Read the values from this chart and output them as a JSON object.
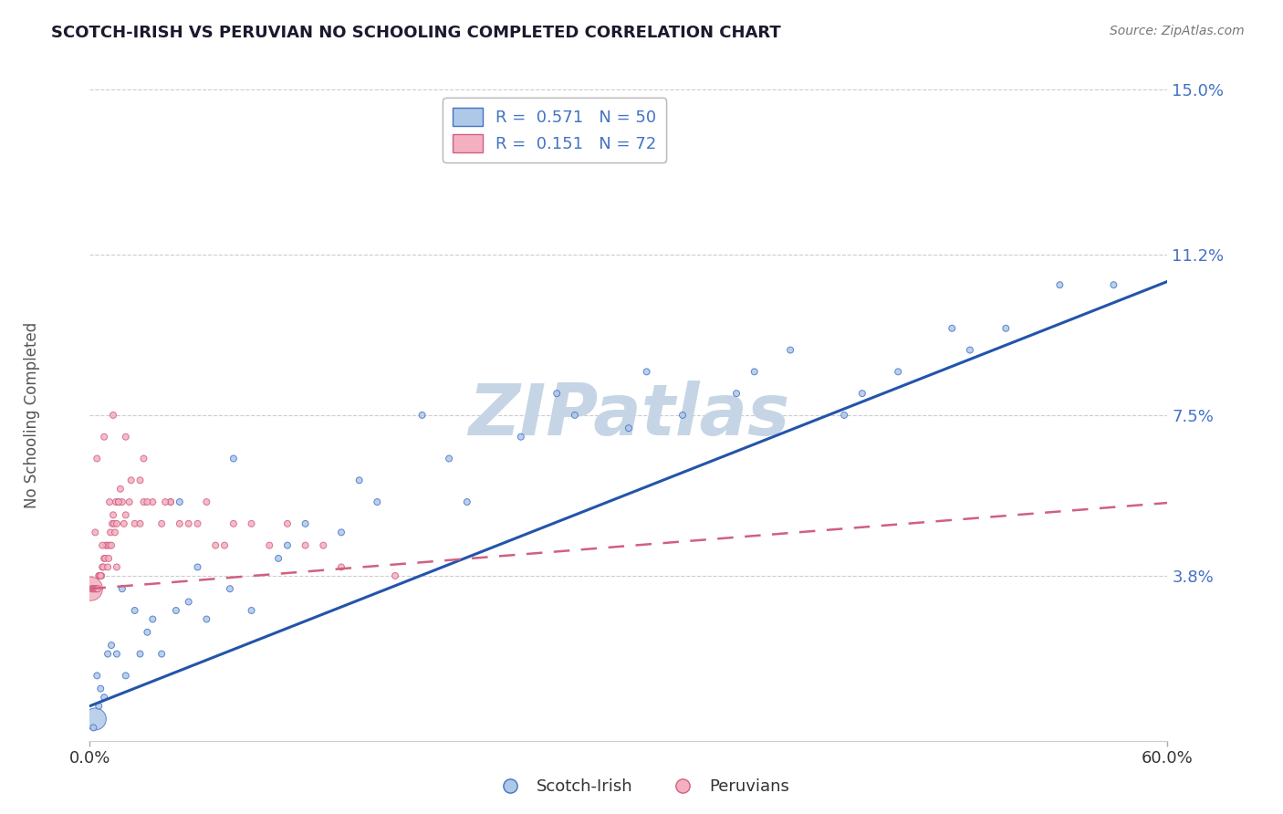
{
  "title": "SCOTCH-IRISH VS PERUVIAN NO SCHOOLING COMPLETED CORRELATION CHART",
  "source": "Source: ZipAtlas.com",
  "ylabel": "No Schooling Completed",
  "xlim": [
    0.0,
    60.0
  ],
  "ylim": [
    0.0,
    15.0
  ],
  "xtick_vals": [
    0.0,
    60.0
  ],
  "xtick_labels": [
    "0.0%",
    "60.0%"
  ],
  "ytick_vals": [
    3.8,
    7.5,
    11.2,
    15.0
  ],
  "ytick_labels": [
    "3.8%",
    "7.5%",
    "11.2%",
    "15.0%"
  ],
  "blue_face": "#aec8e8",
  "blue_edge": "#4472c4",
  "pink_face": "#f4b0c0",
  "pink_edge": "#d06080",
  "blue_trend_color": "#2255aa",
  "pink_trend_color": "#d06080",
  "legend_text_color": "#4472c4",
  "legend_blue_R": "0.571",
  "legend_blue_N": "50",
  "legend_pink_R": "0.151",
  "legend_pink_N": "72",
  "blue_trend_intercept": 0.8,
  "blue_trend_slope": 0.163,
  "pink_trend_intercept": 3.5,
  "pink_trend_slope": 0.033,
  "blue_x": [
    0.3,
    0.5,
    0.8,
    1.2,
    1.5,
    2.0,
    2.8,
    3.2,
    4.0,
    4.8,
    5.5,
    6.5,
    7.8,
    9.0,
    10.5,
    12.0,
    14.0,
    16.0,
    18.5,
    21.0,
    24.0,
    27.0,
    30.0,
    33.0,
    36.0,
    39.0,
    42.0,
    45.0,
    48.0,
    51.0,
    54.0,
    57.0,
    0.2,
    0.6,
    1.0,
    2.5,
    5.0,
    8.0,
    11.0,
    15.0,
    20.0,
    26.0,
    31.0,
    37.0,
    43.0,
    49.0,
    0.4,
    1.8,
    3.5,
    6.0
  ],
  "blue_y": [
    0.5,
    0.8,
    1.0,
    2.2,
    2.0,
    1.5,
    2.0,
    2.5,
    2.0,
    3.0,
    3.2,
    2.8,
    3.5,
    3.0,
    4.2,
    5.0,
    4.8,
    5.5,
    7.5,
    5.5,
    7.0,
    7.5,
    7.2,
    7.5,
    8.0,
    9.0,
    7.5,
    8.5,
    9.5,
    9.5,
    10.5,
    10.5,
    0.3,
    1.2,
    2.0,
    3.0,
    5.5,
    6.5,
    4.5,
    6.0,
    6.5,
    8.0,
    8.5,
    8.5,
    8.0,
    9.0,
    1.5,
    3.5,
    2.8,
    4.0
  ],
  "blue_sizes": [
    25,
    25,
    25,
    25,
    25,
    25,
    25,
    25,
    25,
    25,
    25,
    25,
    25,
    25,
    25,
    25,
    25,
    25,
    25,
    25,
    25,
    25,
    25,
    25,
    25,
    25,
    25,
    25,
    25,
    25,
    25,
    25,
    25,
    25,
    25,
    25,
    25,
    25,
    25,
    25,
    25,
    25,
    25,
    25,
    25,
    25,
    25,
    25,
    25,
    25
  ],
  "blue_large_idx": [
    0
  ],
  "blue_large_size": 300,
  "pink_x": [
    0.05,
    0.1,
    0.15,
    0.2,
    0.25,
    0.3,
    0.35,
    0.4,
    0.45,
    0.5,
    0.55,
    0.6,
    0.65,
    0.7,
    0.75,
    0.8,
    0.85,
    0.9,
    0.95,
    1.0,
    1.05,
    1.1,
    1.15,
    1.2,
    1.25,
    1.3,
    1.35,
    1.4,
    1.45,
    1.5,
    1.6,
    1.7,
    1.8,
    1.9,
    2.0,
    2.2,
    2.5,
    2.8,
    3.0,
    3.5,
    4.0,
    4.5,
    5.0,
    6.0,
    7.0,
    8.0,
    10.0,
    12.0,
    14.0,
    17.0,
    0.3,
    0.7,
    1.1,
    1.6,
    2.3,
    3.2,
    5.5,
    9.0,
    13.0,
    0.4,
    0.8,
    1.3,
    2.0,
    3.0,
    4.5,
    6.5,
    11.0,
    0.6,
    1.5,
    2.8,
    4.2,
    7.5
  ],
  "pink_y": [
    3.5,
    3.5,
    3.5,
    3.5,
    3.5,
    3.5,
    3.5,
    3.5,
    3.5,
    3.8,
    3.8,
    3.8,
    3.8,
    4.0,
    4.0,
    4.2,
    4.2,
    4.5,
    4.5,
    4.0,
    4.2,
    4.5,
    4.8,
    4.5,
    5.0,
    5.2,
    5.0,
    4.8,
    5.5,
    5.0,
    5.5,
    5.8,
    5.5,
    5.0,
    5.2,
    5.5,
    5.0,
    6.0,
    5.5,
    5.5,
    5.0,
    5.5,
    5.0,
    5.0,
    4.5,
    5.0,
    4.5,
    4.5,
    4.0,
    3.8,
    4.8,
    4.5,
    5.5,
    5.5,
    6.0,
    5.5,
    5.0,
    5.0,
    4.5,
    6.5,
    7.0,
    7.5,
    7.0,
    6.5,
    5.5,
    5.5,
    5.0,
    3.8,
    4.0,
    5.0,
    5.5,
    4.5
  ],
  "pink_sizes": [
    25,
    25,
    25,
    25,
    25,
    25,
    25,
    25,
    25,
    25,
    25,
    25,
    25,
    25,
    25,
    25,
    25,
    25,
    25,
    25,
    25,
    25,
    25,
    25,
    25,
    25,
    25,
    25,
    25,
    25,
    25,
    25,
    25,
    25,
    25,
    25,
    25,
    25,
    25,
    25,
    25,
    25,
    25,
    25,
    25,
    25,
    25,
    25,
    25,
    25,
    25,
    25,
    25,
    25,
    25,
    25,
    25,
    25,
    25,
    25,
    25,
    25,
    25,
    25,
    25,
    25,
    25,
    25,
    25,
    25,
    25,
    25
  ],
  "pink_large_idx": [
    0
  ],
  "pink_large_size": 350,
  "watermark": "ZIPatlas",
  "watermark_color": "#c5d5e5",
  "bg_color": "#ffffff",
  "grid_color": "#cccccc",
  "axis_text_color": "#333333",
  "title_color": "#1a1a2e"
}
